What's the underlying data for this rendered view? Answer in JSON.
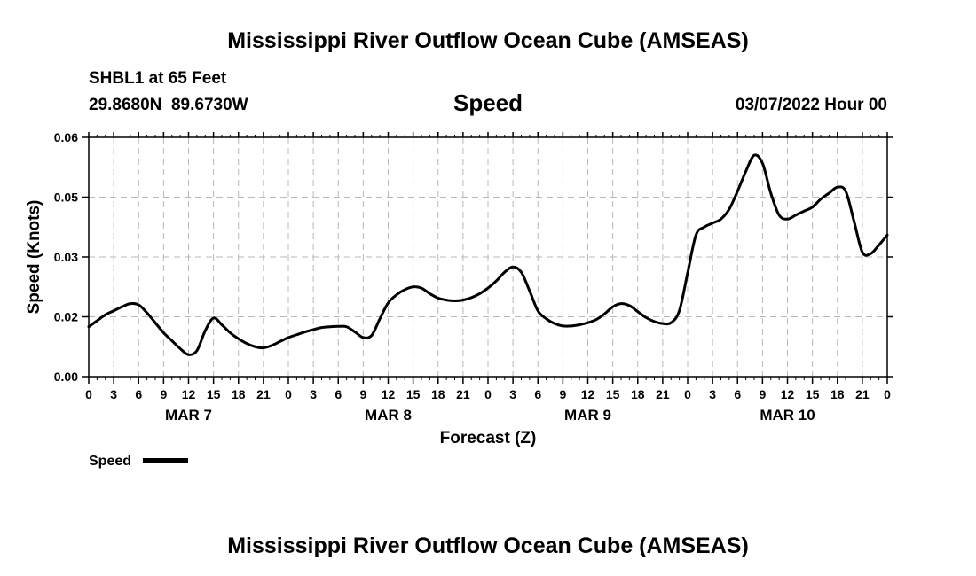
{
  "page": {
    "title": "Mississippi River Outflow Ocean Cube (AMSEAS)",
    "station": "SHBL1 at 65 Feet",
    "coords": "29.8680N  89.6730W",
    "variable": "Speed",
    "datetime": "03/07/2022 Hour 00",
    "footer_title": "Mississippi River Outflow Ocean Cube (AMSEAS)"
  },
  "chart_data": {
    "type": "line",
    "title": "Speed",
    "xlabel": "Forecast (Z)",
    "ylabel": "Speed (Knots)",
    "xlim": [
      0,
      96
    ],
    "ylim": [
      0,
      0.06
    ],
    "yticks": [
      0,
      0.015,
      0.03,
      0.045,
      0.06
    ],
    "ytick_labels": [
      "0.00",
      "0.02",
      "0.03",
      "0.05",
      "0.06"
    ],
    "xticks": [
      0,
      3,
      6,
      9,
      12,
      15,
      18,
      21,
      24,
      27,
      30,
      33,
      36,
      39,
      42,
      45,
      48,
      51,
      54,
      57,
      60,
      63,
      66,
      69,
      72,
      75,
      78,
      81,
      84,
      87,
      90,
      93,
      96
    ],
    "xtick_labels": [
      "0",
      "3",
      "6",
      "9",
      "12",
      "15",
      "18",
      "21",
      "0",
      "3",
      "6",
      "9",
      "12",
      "15",
      "18",
      "21",
      "0",
      "3",
      "6",
      "9",
      "12",
      "15",
      "18",
      "21",
      "0",
      "3",
      "6",
      "9",
      "12",
      "15",
      "18",
      "21",
      "0"
    ],
    "day_labels": [
      {
        "label": "MAR 7",
        "x": 12
      },
      {
        "label": "MAR 8",
        "x": 36
      },
      {
        "label": "MAR 9",
        "x": 60
      },
      {
        "label": "MAR 10",
        "x": 84
      }
    ],
    "grid": true,
    "legend": {
      "label": "Speed",
      "placement": "bottom-left"
    },
    "series": [
      {
        "name": "Speed",
        "x": [
          0,
          1,
          2,
          3,
          4,
          5,
          6,
          7,
          8,
          9,
          10,
          11,
          12,
          13,
          14,
          15,
          16,
          17,
          18,
          19,
          20,
          21,
          22,
          23,
          24,
          25,
          26,
          27,
          28,
          29,
          30,
          31,
          32,
          33,
          34,
          35,
          36,
          37,
          38,
          39,
          40,
          41,
          42,
          43,
          44,
          45,
          46,
          47,
          48,
          49,
          50,
          51,
          52,
          53,
          54,
          55,
          56,
          57,
          58,
          59,
          60,
          61,
          62,
          63,
          64,
          65,
          66,
          67,
          68,
          69,
          70,
          71,
          72,
          73,
          74,
          75,
          76,
          77,
          78,
          79,
          80,
          81,
          82,
          83,
          84,
          85,
          86,
          87,
          88,
          89,
          90,
          91,
          92,
          93,
          94,
          95,
          96
        ],
        "values": [
          0.0125,
          0.014,
          0.0155,
          0.0165,
          0.0175,
          0.0183,
          0.018,
          0.016,
          0.0135,
          0.011,
          0.009,
          0.007,
          0.0055,
          0.0065,
          0.0115,
          0.0147,
          0.013,
          0.011,
          0.0095,
          0.0083,
          0.0075,
          0.0072,
          0.0078,
          0.0088,
          0.0098,
          0.0105,
          0.0112,
          0.0118,
          0.0123,
          0.0125,
          0.0126,
          0.0125,
          0.0112,
          0.0098,
          0.0103,
          0.0145,
          0.0185,
          0.0205,
          0.0218,
          0.0225,
          0.0222,
          0.0208,
          0.0197,
          0.0192,
          0.019,
          0.0192,
          0.0198,
          0.0208,
          0.0222,
          0.024,
          0.0262,
          0.0275,
          0.0262,
          0.0215,
          0.0165,
          0.0145,
          0.0133,
          0.0127,
          0.0127,
          0.013,
          0.0135,
          0.0143,
          0.0157,
          0.0175,
          0.0183,
          0.0178,
          0.0163,
          0.0148,
          0.0138,
          0.0133,
          0.0135,
          0.0165,
          0.026,
          0.0355,
          0.0375,
          0.0385,
          0.0395,
          0.042,
          0.0465,
          0.0515,
          0.0555,
          0.0535,
          0.046,
          0.0405,
          0.0395,
          0.0405,
          0.0415,
          0.0425,
          0.0445,
          0.046,
          0.0475,
          0.0465,
          0.039,
          0.0312,
          0.0308,
          0.033,
          0.0355
        ]
      }
    ]
  }
}
